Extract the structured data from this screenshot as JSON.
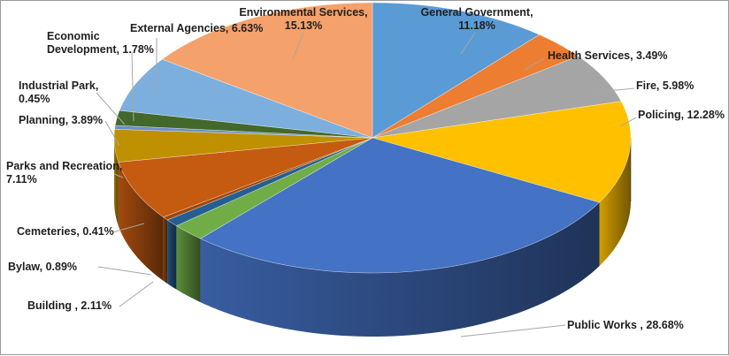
{
  "chart_data": {
    "type": "pie",
    "variant": "3d",
    "title": "",
    "slices": [
      {
        "name": "General Government",
        "value": 11.18,
        "label_lines": [
          "General Government,",
          "11.18%"
        ],
        "color": "#5b9bd5"
      },
      {
        "name": "Health Services",
        "value": 3.49,
        "label_lines": [
          "Health Services, 3.49%"
        ],
        "color": "#ed7d31"
      },
      {
        "name": "Fire",
        "value": 5.98,
        "label_lines": [
          "Fire, 5.98%"
        ],
        "color": "#a5a5a5"
      },
      {
        "name": "Policing",
        "value": 12.28,
        "label_lines": [
          "Policing, 12.28%"
        ],
        "color": "#ffc000"
      },
      {
        "name": "Public Works",
        "value": 28.68,
        "label_lines": [
          "Public Works , 28.68%"
        ],
        "color": "#4472c4"
      },
      {
        "name": "Building",
        "value": 2.11,
        "label_lines": [
          "Building , 2.11%"
        ],
        "color": "#70ad47"
      },
      {
        "name": "Bylaw",
        "value": 0.89,
        "label_lines": [
          "Bylaw, 0.89%"
        ],
        "color": "#255e91"
      },
      {
        "name": "Cemeteries",
        "value": 0.41,
        "label_lines": [
          "Cemeteries, 0.41%"
        ],
        "color": "#9e480e"
      },
      {
        "name": "Parks and Recreation",
        "value": 7.11,
        "label_lines": [
          "Parks and Recreation,",
          "7.11%"
        ],
        "color": "#c55a11"
      },
      {
        "name": "Planning",
        "value": 3.89,
        "label_lines": [
          "Planning, 3.89%"
        ],
        "color": "#bf9000"
      },
      {
        "name": "Industrial Park",
        "value": 0.45,
        "label_lines": [
          "Industrial Park,",
          "0.45%"
        ],
        "color": "#698ed0"
      },
      {
        "name": "Economic Development",
        "value": 1.78,
        "label_lines": [
          "Economic",
          "Development, 1.78%"
        ],
        "color": "#43682b"
      },
      {
        "name": "External Agencies",
        "value": 6.63,
        "label_lines": [
          "External Agencies, 6.63%"
        ],
        "color": "#7cafdd"
      },
      {
        "name": "Environmental Services",
        "value": 15.13,
        "label_lines": [
          "Environmental Services,",
          "15.13%"
        ],
        "color": "#f4a16b"
      }
    ]
  }
}
